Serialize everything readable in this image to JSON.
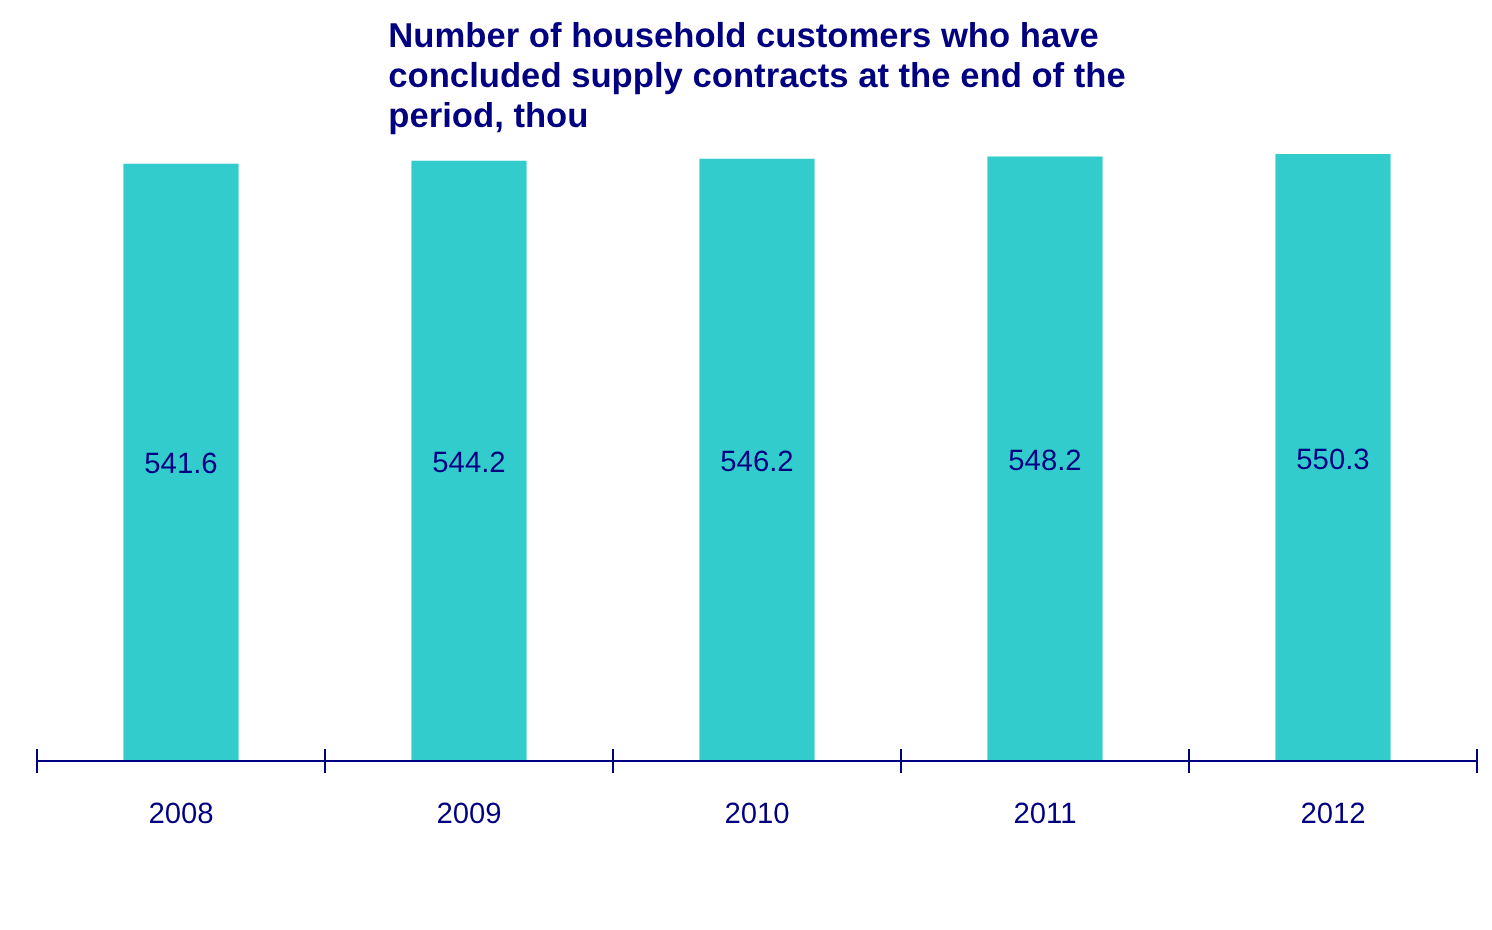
{
  "chart_data": {
    "type": "bar",
    "title": "Number of household customers who have concluded supply contracts at the end of the period, thou",
    "categories": [
      "2008",
      "2009",
      "2010",
      "2011",
      "2012"
    ],
    "values": [
      541.6,
      544.2,
      546.2,
      548.2,
      550.3
    ],
    "color": "#33cccc",
    "data_labels": true,
    "grid": false,
    "tick_labels": "x"
  }
}
